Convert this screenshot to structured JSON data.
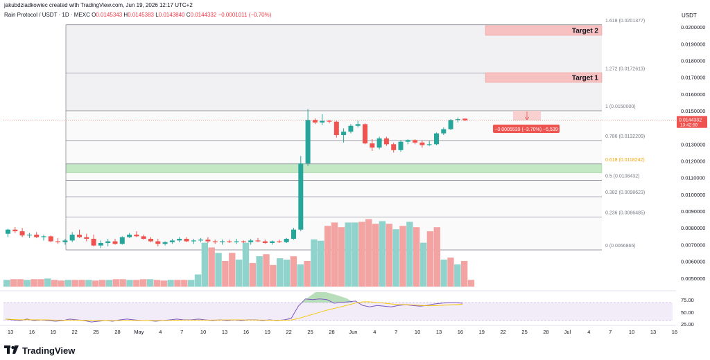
{
  "header": {
    "author_line": "jakubdziadkowiec created with TradingView.com, Jun 19, 2026 12:17 UTC+2",
    "symbol": "Rain Protocol / USDT · 1D · MEXC",
    "ohlc": [
      {
        "label": "O",
        "value": "0.0145343"
      },
      {
        "label": "H",
        "value": "0.0145383"
      },
      {
        "label": "L",
        "value": "0.0143840"
      },
      {
        "label": "C",
        "value": "0.0144332"
      }
    ],
    "change": "−0.0001011 (−0.70%)",
    "currency": "USDT"
  },
  "price_axis": {
    "ticks": [
      "0.0200000",
      "0.0190000",
      "0.0180000",
      "0.0170000",
      "0.0160000",
      "0.0150000",
      "0.0130000",
      "0.0120000",
      "0.0110000",
      "0.0100000",
      "0.0090000",
      "0.0080000",
      "0.0070000",
      "0.0060000",
      "0.0050000"
    ],
    "current_price": "0.0144332",
    "countdown": "13:42:59"
  },
  "fibonacci": [
    {
      "label": "1.618 (0.0201377)",
      "color": "#787b86"
    },
    {
      "label": "1.272 (0.0172613)",
      "color": "#787b86"
    },
    {
      "label": "1 (0.0150000)",
      "color": "#787b86"
    },
    {
      "label": "0.786 (0.0132209)",
      "color": "#787b86"
    },
    {
      "label": "0.618 (0.0118242)",
      "color": "#f7a600"
    },
    {
      "label": "0.5 (0.0108432)",
      "color": "#787b86"
    },
    {
      "label": "0.382 (0.0098623)",
      "color": "#787b86"
    },
    {
      "label": "0.236 (0.0086485)",
      "color": "#787b86"
    },
    {
      "label": "0 (0.0066865)",
      "color": "#787b86"
    }
  ],
  "targets": [
    {
      "label": "Target 2"
    },
    {
      "label": "Target 1"
    }
  ],
  "measure_label": "−0.0005539 (−3.70%) −5,539",
  "rsi_axis": [
    "75.00",
    "50.00",
    "25.00"
  ],
  "time_axis": [
    "13",
    "16",
    "19",
    "22",
    "25",
    "28",
    "May",
    "4",
    "7",
    "10",
    "13",
    "16",
    "19",
    "22",
    "25",
    "28",
    "Jun",
    "4",
    "7",
    "10",
    "13",
    "16",
    "19",
    "22",
    "25",
    "28",
    "Jul",
    "4",
    "7",
    "10",
    "13",
    "16"
  ],
  "brand": "TradingView",
  "colors": {
    "up": "#26a69a",
    "down": "#ef5350",
    "vol_up": "#8fd3cc",
    "vol_down": "#f4a3a3"
  }
}
